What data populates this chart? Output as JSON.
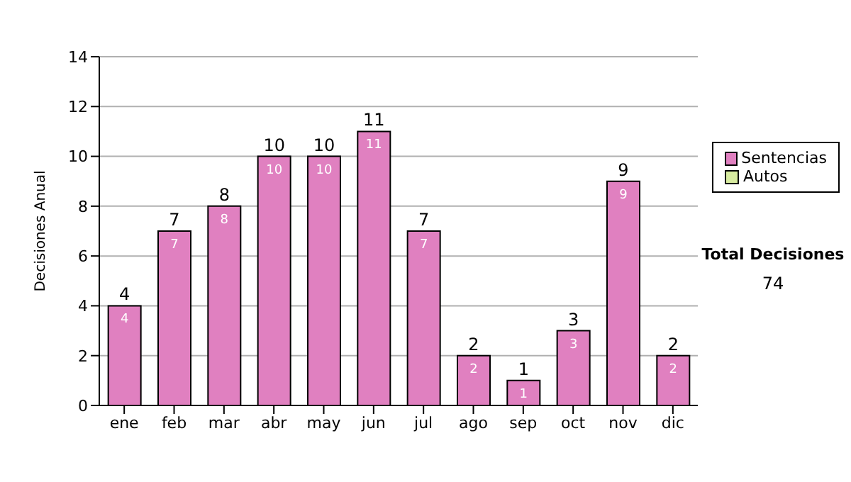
{
  "chart_data": {
    "type": "bar",
    "ylabel": "Decisiones Anual",
    "categories": [
      "ene",
      "feb",
      "mar",
      "abr",
      "may",
      "jun",
      "jul",
      "ago",
      "sep",
      "oct",
      "nov",
      "dic"
    ],
    "series": [
      {
        "name": "Sentencias",
        "color": "#e080c0",
        "values": [
          4,
          7,
          8,
          10,
          10,
          11,
          7,
          2,
          1,
          3,
          9,
          2
        ],
        "value_labels": [
          "4",
          "7",
          "8",
          "10",
          "10",
          "11",
          "7",
          "2",
          "1",
          "3",
          "9",
          "2"
        ]
      },
      {
        "name": "Autos",
        "color": "#d8eca0",
        "values": [
          0,
          0,
          0,
          0,
          0,
          0,
          0,
          0,
          0,
          0,
          0,
          0
        ]
      }
    ],
    "stacked": true,
    "totals": [
      "4",
      "7",
      "8",
      "10",
      "10",
      "11",
      "7",
      "2",
      "1",
      "3",
      "9",
      "2"
    ],
    "ylim": [
      0,
      14
    ],
    "yticks": [
      0,
      2,
      4,
      6,
      8,
      10,
      12,
      14
    ],
    "grid": "y",
    "legend": "right",
    "annotations": [
      "Total Decisiones",
      "74"
    ]
  }
}
